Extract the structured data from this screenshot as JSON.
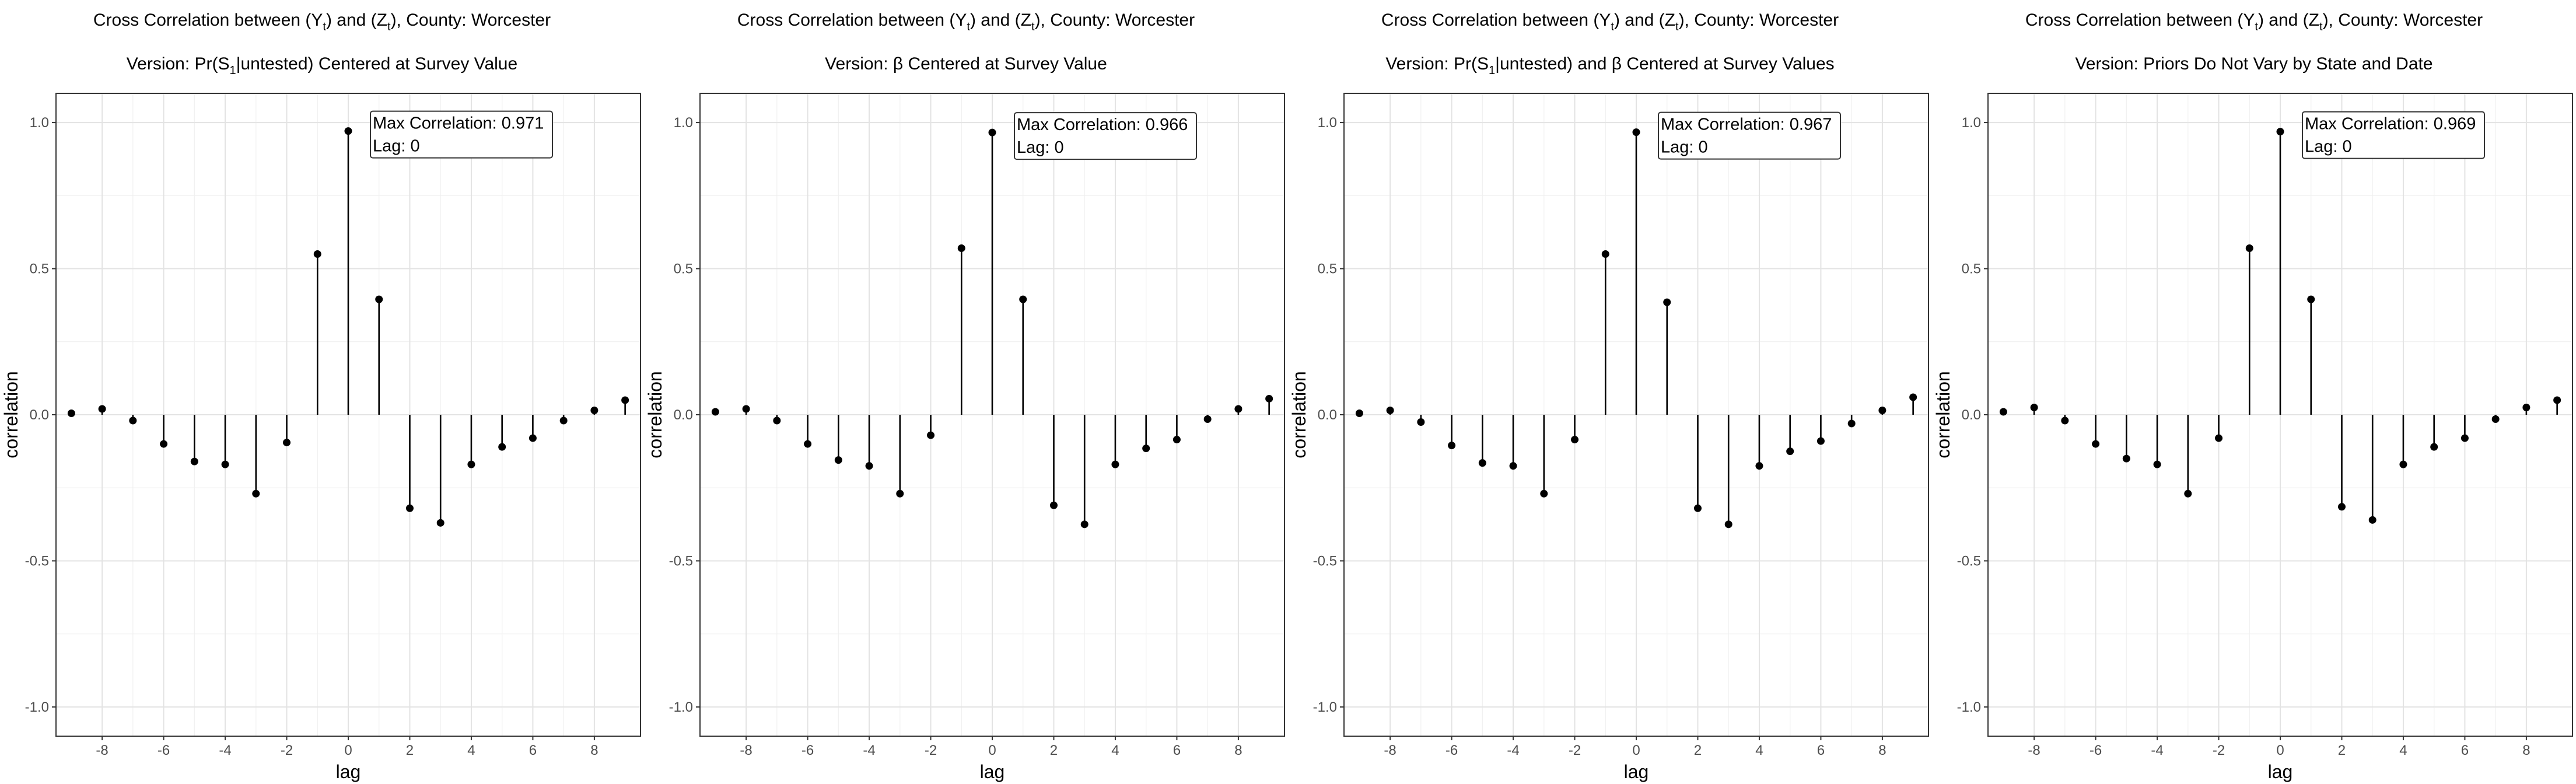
{
  "chart_data": [
    {
      "type": "stem",
      "title": "Cross Correlation between (Y_t) and (Z_t), County: Worcester",
      "title_parts": {
        "a": "Cross Correlation between (Y",
        "b": ") and (Z",
        "c": "), County: Worcester",
        "sub": "t"
      },
      "subtitle": "Version: Pr(S1|untested) Centered at Survey Value",
      "subtitle_parts": {
        "a": "Version: Pr(S",
        "sub": "1",
        "b": "|untested) Centered at Survey Value"
      },
      "xlabel": "lag",
      "ylabel": "correlation",
      "xlim": [
        -9.5,
        9.5
      ],
      "ylim": [
        -1.1,
        1.1
      ],
      "xticks": [
        -8,
        -6,
        -4,
        -2,
        0,
        2,
        4,
        6,
        8
      ],
      "yticks": [
        -1.0,
        -0.5,
        0.0,
        0.5,
        1.0
      ],
      "ytick_labels": [
        "-1.0",
        "-0.5",
        "0.0",
        "0.5",
        "1.0"
      ],
      "grid": true,
      "x": [
        -9,
        -8,
        -7,
        -6,
        -5,
        -4,
        -3,
        -2,
        -1,
        0,
        1,
        2,
        3,
        4,
        5,
        6,
        7,
        8,
        9
      ],
      "values": [
        0.005,
        0.02,
        -0.02,
        -0.1,
        -0.16,
        -0.17,
        -0.27,
        -0.095,
        0.55,
        0.971,
        0.395,
        -0.32,
        -0.37,
        -0.17,
        -0.11,
        -0.08,
        -0.02,
        0.015,
        0.05
      ],
      "annotation": {
        "line1": "Max Correlation: 0.971",
        "line2": "Lag: 0"
      }
    },
    {
      "type": "stem",
      "title": "Cross Correlation between (Y_t) and (Z_t), County: Worcester",
      "title_parts": {
        "a": "Cross Correlation between (Y",
        "b": ") and (Z",
        "c": "), County: Worcester",
        "sub": "t"
      },
      "subtitle": "Version: β Centered at Survey Value",
      "subtitle_parts": {
        "a": "Version: β Centered at Survey Value",
        "sub": "",
        "b": ""
      },
      "xlabel": "lag",
      "ylabel": "correlation",
      "xlim": [
        -9.5,
        9.5
      ],
      "ylim": [
        -1.1,
        1.1
      ],
      "xticks": [
        -8,
        -6,
        -4,
        -2,
        0,
        2,
        4,
        6,
        8
      ],
      "yticks": [
        -1.0,
        -0.5,
        0.0,
        0.5,
        1.0
      ],
      "ytick_labels": [
        "-1.0",
        "-0.5",
        "0.0",
        "0.5",
        "1.0"
      ],
      "grid": true,
      "x": [
        -9,
        -8,
        -7,
        -6,
        -5,
        -4,
        -3,
        -2,
        -1,
        0,
        1,
        2,
        3,
        4,
        5,
        6,
        7,
        8,
        9
      ],
      "values": [
        0.01,
        0.02,
        -0.02,
        -0.1,
        -0.155,
        -0.175,
        -0.27,
        -0.07,
        0.57,
        0.966,
        0.395,
        -0.31,
        -0.375,
        -0.17,
        -0.115,
        -0.085,
        -0.015,
        0.02,
        0.055
      ],
      "annotation": {
        "line1": "Max Correlation: 0.966",
        "line2": "Lag: 0"
      }
    },
    {
      "type": "stem",
      "title": "Cross Correlation between (Y_t) and (Z_t), County: Worcester",
      "title_parts": {
        "a": "Cross Correlation between (Y",
        "b": ") and (Z",
        "c": "), County: Worcester",
        "sub": "t"
      },
      "subtitle": "Version: Pr(S1|untested) and β Centered at Survey Values",
      "subtitle_parts": {
        "a": "Version: Pr(S",
        "sub": "1",
        "b": "|untested) and β Centered at Survey Values"
      },
      "xlabel": "lag",
      "ylabel": "correlation",
      "xlim": [
        -9.5,
        9.5
      ],
      "ylim": [
        -1.1,
        1.1
      ],
      "xticks": [
        -8,
        -6,
        -4,
        -2,
        0,
        2,
        4,
        6,
        8
      ],
      "yticks": [
        -1.0,
        -0.5,
        0.0,
        0.5,
        1.0
      ],
      "ytick_labels": [
        "-1.0",
        "-0.5",
        "0.0",
        "0.5",
        "1.0"
      ],
      "grid": true,
      "x": [
        -9,
        -8,
        -7,
        -6,
        -5,
        -4,
        -3,
        -2,
        -1,
        0,
        1,
        2,
        3,
        4,
        5,
        6,
        7,
        8,
        9
      ],
      "values": [
        0.005,
        0.015,
        -0.025,
        -0.105,
        -0.165,
        -0.175,
        -0.27,
        -0.085,
        0.55,
        0.967,
        0.385,
        -0.32,
        -0.375,
        -0.175,
        -0.125,
        -0.09,
        -0.03,
        0.015,
        0.06
      ],
      "annotation": {
        "line1": "Max Correlation: 0.967",
        "line2": "Lag: 0"
      }
    },
    {
      "type": "stem",
      "title": "Cross Correlation between (Y_t) and (Z_t), County: Worcester",
      "title_parts": {
        "a": "Cross Correlation between (Y",
        "b": ") and (Z",
        "c": "), County: Worcester",
        "sub": "t"
      },
      "subtitle": "Version: Priors Do Not Vary by State and Date",
      "subtitle_parts": {
        "a": "Version: Priors Do Not Vary by State and Date",
        "sub": "",
        "b": ""
      },
      "xlabel": "lag",
      "ylabel": "correlation",
      "xlim": [
        -9.5,
        9.5
      ],
      "ylim": [
        -1.1,
        1.1
      ],
      "xticks": [
        -8,
        -6,
        -4,
        -2,
        0,
        2,
        4,
        6,
        8
      ],
      "yticks": [
        -1.0,
        -0.5,
        0.0,
        0.5,
        1.0
      ],
      "ytick_labels": [
        "-1.0",
        "-0.5",
        "0.0",
        "0.5",
        "1.0"
      ],
      "grid": true,
      "x": [
        -9,
        -8,
        -7,
        -6,
        -5,
        -4,
        -3,
        -2,
        -1,
        0,
        1,
        2,
        3,
        4,
        5,
        6,
        7,
        8,
        9
      ],
      "values": [
        0.01,
        0.025,
        -0.02,
        -0.1,
        -0.15,
        -0.17,
        -0.27,
        -0.08,
        0.57,
        0.969,
        0.395,
        -0.315,
        -0.36,
        -0.17,
        -0.11,
        -0.08,
        -0.015,
        0.025,
        0.05
      ],
      "annotation": {
        "line1": "Max Correlation: 0.969",
        "line2": "Lag: 0"
      }
    }
  ]
}
